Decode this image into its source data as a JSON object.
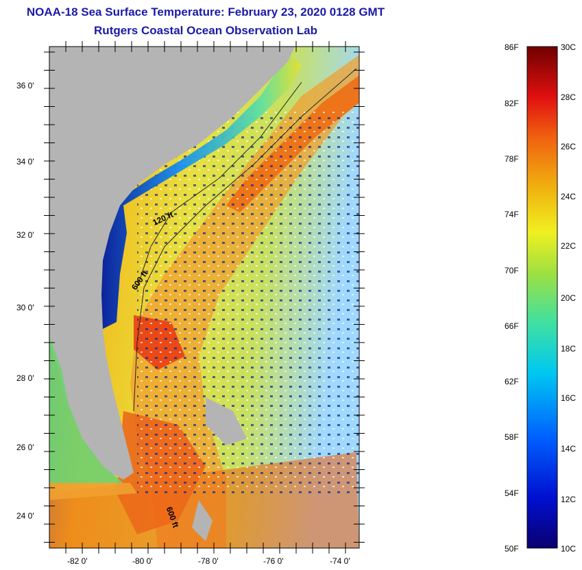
{
  "title": "NOAA-18 Sea Surface Temperature:  February 23, 2020 0128 GMT",
  "subtitle": "Rutgers Coastal Ocean Observation Lab",
  "lat_labels": [
    "36 0'",
    "34 0'",
    "32 0'",
    "30 0'",
    "28 0'",
    "26 0'",
    "24 0'"
  ],
  "lon_labels": [
    "-82 0'",
    "-80 0'",
    "-78 0'",
    "-76 0'",
    "-74 0'"
  ],
  "isobath_labels": [
    "120 ft",
    "600 ft",
    "600 ft"
  ],
  "scale_f_labels": [
    "86F",
    "82F",
    "78F",
    "74F",
    "70F",
    "66F",
    "62F",
    "58F",
    "54F",
    "50F"
  ],
  "scale_c_labels": [
    "30C",
    "28C",
    "26C",
    "24C",
    "22C",
    "20C",
    "18C",
    "16C",
    "14C",
    "12C",
    "10C"
  ],
  "colors": {
    "title": "#1a1aa6",
    "land": "#b4b4b4",
    "ocean_cold": "#0a2a8c",
    "ocean_warm": "#f07014"
  }
}
